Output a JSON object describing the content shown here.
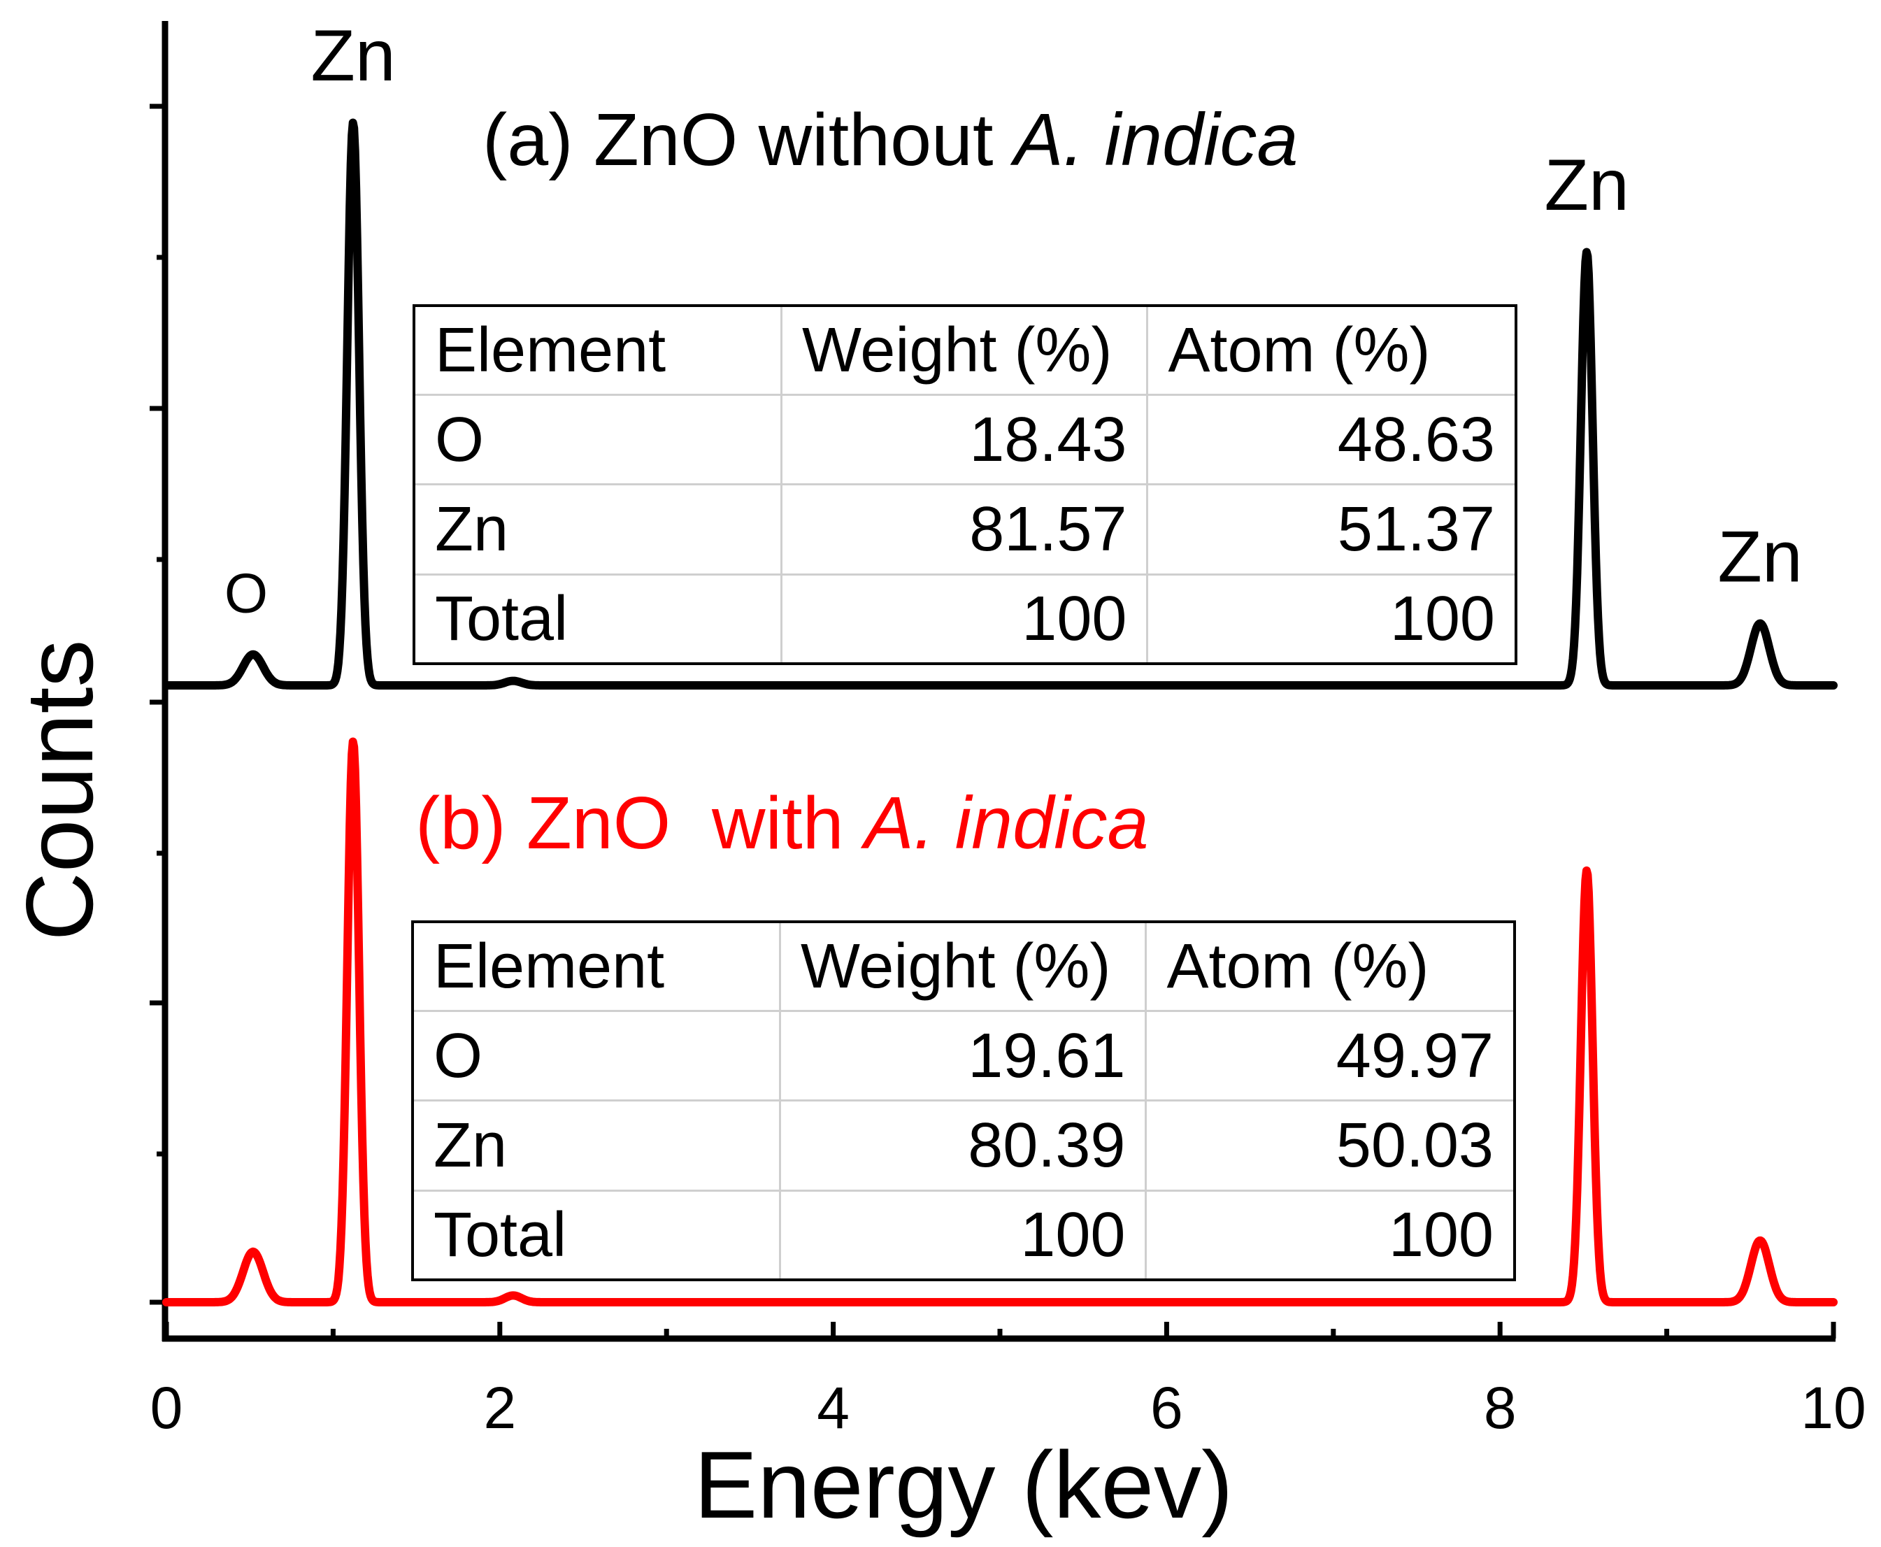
{
  "chart_data": {
    "type": "line",
    "xlabel": "Energy (kev)",
    "ylabel": "Counts",
    "xlim": [
      0,
      10
    ],
    "x_ticks": [
      "0",
      "2",
      "4",
      "6",
      "8",
      "10"
    ],
    "series": [
      {
        "id": "a",
        "name": "(a) ZnO without A. indica",
        "color": "#000000",
        "baseline": 0,
        "peak_max": 100,
        "peaks": [
          {
            "x": 0.52,
            "height": 5.5,
            "width": 0.06
          },
          {
            "x": 1.12,
            "height": 100,
            "width": 0.035
          },
          {
            "x": 2.08,
            "height": 0.8,
            "width": 0.05
          },
          {
            "x": 8.52,
            "height": 77,
            "width": 0.035
          },
          {
            "x": 9.56,
            "height": 11,
            "width": 0.055
          }
        ],
        "peak_labels": [
          {
            "text": "O",
            "x": 0.52
          },
          {
            "text": "Zn",
            "x": 1.12
          },
          {
            "text": "Zn",
            "x": 8.52
          },
          {
            "text": "Zn",
            "x": 9.56
          }
        ],
        "table": {
          "headers": [
            "Element",
            "Weight (%)",
            "Atom (%)"
          ],
          "rows": [
            [
              "O",
              "18.43",
              "48.63"
            ],
            [
              "Zn",
              "81.57",
              "51.37"
            ],
            [
              "Total",
              "100",
              "100"
            ]
          ]
        }
      },
      {
        "id": "b",
        "name": "(b) ZnO  with A. indica",
        "color": "#ff0000",
        "baseline": 0,
        "peak_max": 100,
        "peaks": [
          {
            "x": 0.52,
            "height": 9,
            "width": 0.06
          },
          {
            "x": 1.12,
            "height": 100,
            "width": 0.035
          },
          {
            "x": 2.08,
            "height": 1.2,
            "width": 0.05
          },
          {
            "x": 8.52,
            "height": 77,
            "width": 0.035
          },
          {
            "x": 9.56,
            "height": 11,
            "width": 0.055
          }
        ],
        "peak_labels": [],
        "table": {
          "headers": [
            "Element",
            "Weight (%)",
            "Atom (%)"
          ],
          "rows": [
            [
              "O",
              "19.61",
              "49.97"
            ],
            [
              "Zn",
              "80.39",
              "50.03"
            ],
            [
              "Total",
              "100",
              "100"
            ]
          ]
        }
      }
    ]
  },
  "titles": {
    "a_prefix": "(a) ZnO without ",
    "a_italic": "A. indica",
    "b_prefix": "(b) ZnO  with ",
    "b_italic": "A. indica"
  }
}
